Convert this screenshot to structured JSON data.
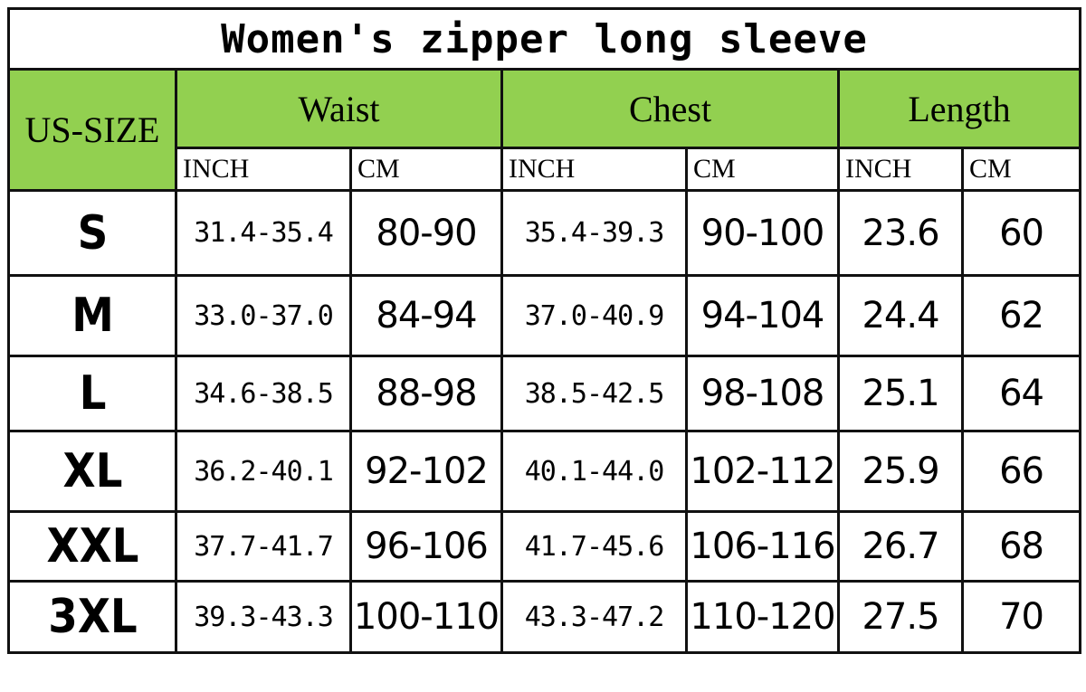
{
  "title": "Women's zipper long sleeve",
  "colors": {
    "header_bg": "#92d050",
    "border": "#111111"
  },
  "headers": {
    "size": "US-SIZE",
    "groups": [
      "Waist",
      "Chest",
      "Length"
    ],
    "units": [
      "INCH",
      "CM",
      "INCH",
      "CM",
      "INCH",
      "CM"
    ]
  },
  "rows": [
    {
      "size": "S",
      "values": [
        "31.4-35.4",
        "80-90",
        "35.4-39.3",
        "90-100",
        "23.6",
        "60"
      ]
    },
    {
      "size": "M",
      "values": [
        "33.0-37.0",
        "84-94",
        "37.0-40.9",
        "94-104",
        "24.4",
        "62"
      ]
    },
    {
      "size": "L",
      "values": [
        "34.6-38.5",
        "88-98",
        "38.5-42.5",
        "98-108",
        "25.1",
        "64"
      ]
    },
    {
      "size": "XL",
      "values": [
        "36.2-40.1",
        "92-102",
        "40.1-44.0",
        "102-112",
        "25.9",
        "66"
      ]
    },
    {
      "size": "XXL",
      "values": [
        "37.7-41.7",
        "96-106",
        "41.7-45.6",
        "106-116",
        "26.7",
        "68"
      ]
    },
    {
      "size": "3XL",
      "values": [
        "39.3-43.3",
        "100-110",
        "43.3-47.2",
        "110-120",
        "27.5",
        "70"
      ]
    }
  ]
}
